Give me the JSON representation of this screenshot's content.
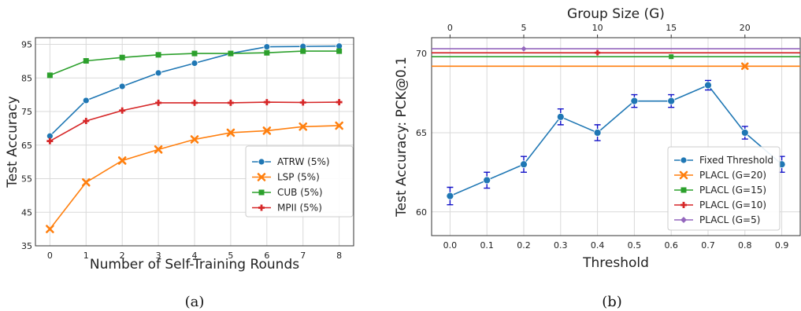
{
  "chart_data": [
    {
      "type": "line",
      "caption": "(a)",
      "xlabel": "Number of Self-Training Rounds",
      "ylabel": "Test Accuracy",
      "x": [
        0,
        1,
        2,
        3,
        4,
        5,
        6,
        7,
        8
      ],
      "xticks": [
        "0",
        "1",
        "2",
        "3",
        "4",
        "5",
        "6",
        "7",
        "8"
      ],
      "yticks": [
        "35",
        "45",
        "55",
        "65",
        "75",
        "85",
        "95"
      ],
      "ylim": [
        35,
        97
      ],
      "grid": true,
      "legend_position": "center-right",
      "series": [
        {
          "name": "ATRW (5%)",
          "color": "#1f77b4",
          "marker": "circle",
          "values": [
            67.7,
            78.3,
            82.5,
            86.5,
            89.4,
            92.3,
            94.3,
            94.4,
            94.5
          ]
        },
        {
          "name": "LSP (5%)",
          "color": "#ff7f0e",
          "marker": "x",
          "values": [
            40.0,
            53.9,
            60.4,
            63.7,
            66.7,
            68.7,
            69.3,
            70.5,
            70.8
          ]
        },
        {
          "name": "CUB (5%)",
          "color": "#2ca02c",
          "marker": "square",
          "values": [
            85.8,
            90.1,
            91.1,
            91.9,
            92.3,
            92.3,
            92.5,
            93.0,
            93.0
          ]
        },
        {
          "name": "MPII (5%)",
          "color": "#d62728",
          "marker": "plus",
          "values": [
            66.2,
            72.2,
            75.3,
            77.6,
            77.6,
            77.6,
            77.8,
            77.7,
            77.8
          ]
        }
      ]
    },
    {
      "type": "line",
      "caption": "(b)",
      "xlabel": "Threshold",
      "ylabel": "Test Accuracy: PCK@0.1",
      "x2label": "Group Size (G)",
      "xticks": [
        "0.0",
        "0.1",
        "0.2",
        "0.3",
        "0.4",
        "0.5",
        "0.6",
        "0.7",
        "0.8",
        "0.9"
      ],
      "x2ticks": [
        "0",
        "5",
        "10",
        "15",
        "20"
      ],
      "yticks": [
        "60",
        "65",
        "70"
      ],
      "xlim": [
        -0.05,
        0.95
      ],
      "ylim": [
        58.5,
        71.0
      ],
      "grid": true,
      "legend_position": "bottom-right",
      "series": [
        {
          "name": "Fixed Threshold",
          "color": "#1f77b4",
          "marker": "circle",
          "x": [
            0.0,
            0.1,
            0.2,
            0.3,
            0.4,
            0.5,
            0.6,
            0.7,
            0.8,
            0.9
          ],
          "values": [
            61.0,
            62.0,
            63.0,
            66.0,
            65.0,
            67.0,
            67.0,
            68.0,
            65.0,
            63.0
          ],
          "errors": [
            0.55,
            0.5,
            0.5,
            0.5,
            0.5,
            0.4,
            0.4,
            0.3,
            0.4,
            0.5
          ]
        },
        {
          "name": "PLACL (G=20)",
          "color": "#ff7f0e",
          "marker": "x",
          "value": 69.2,
          "marker_group": 20
        },
        {
          "name": "PLACL (G=15)",
          "color": "#2ca02c",
          "marker": "square",
          "value": 69.8,
          "marker_group": 15
        },
        {
          "name": "PLACL (G=10)",
          "color": "#d62728",
          "marker": "plus",
          "value": 70.05,
          "marker_group": 10
        },
        {
          "name": "PLACL (G=5)",
          "color": "#9467bd",
          "marker": "diamond",
          "value": 70.3,
          "marker_group": 5
        }
      ]
    }
  ]
}
